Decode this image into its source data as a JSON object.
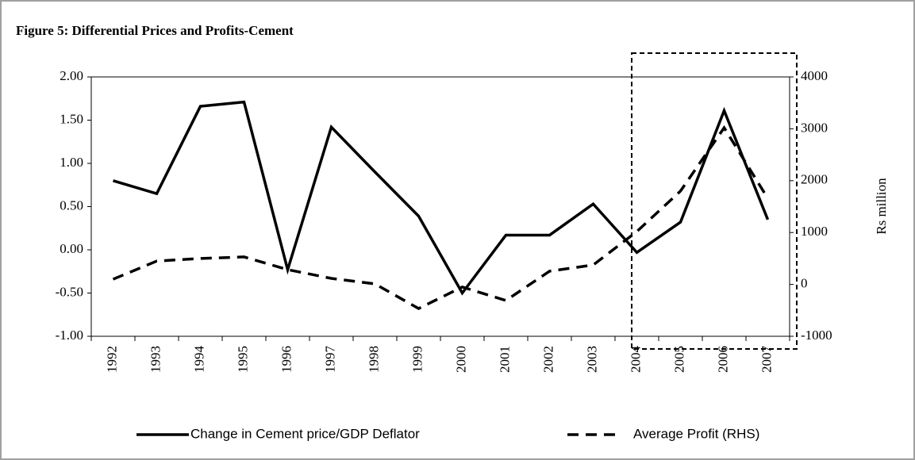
{
  "chart_data": {
    "type": "line",
    "title": "Figure 5: Differential Prices and Profits-Cement",
    "y2_label": "Rs million",
    "categories": [
      "1992",
      "1993",
      "1994",
      "1995",
      "1996",
      "1997",
      "1998",
      "1999",
      "2000",
      "2001",
      "2002",
      "2003",
      "2004",
      "2005",
      "2006",
      "2007"
    ],
    "series": [
      {
        "name": "Change in Cement price/GDP Deflator",
        "color": "#000000",
        "dash": "solid",
        "values": [
          0.8,
          0.65,
          1.66,
          1.71,
          -0.23,
          1.42,
          0.9,
          0.39,
          -0.5,
          0.17,
          0.17,
          0.53,
          -0.03,
          0.32,
          1.61,
          0.35
        ]
      },
      {
        "name": "Average Profit (RHS)",
        "color": "#000000",
        "dash": "dashed",
        "axis": "y2",
        "values": [
          100,
          450,
          500,
          530,
          285,
          116,
          10,
          -465,
          -50,
          -310,
          255,
          375,
          1020,
          1800,
          3020,
          1660
        ]
      }
    ],
    "ylim": [
      -1,
      2
    ],
    "yticks": [
      {
        "value": -1,
        "label": "-1.00"
      },
      {
        "value": -0.5,
        "label": "-0.50"
      },
      {
        "value": 0,
        "label": "0.00"
      },
      {
        "value": 0.5,
        "label": "0.50"
      },
      {
        "value": 1,
        "label": "1.00"
      },
      {
        "value": 1.5,
        "label": "1.50"
      },
      {
        "value": 2,
        "label": "2.00"
      }
    ],
    "y2lim": [
      -1000,
      4000
    ],
    "y2ticks": [
      -1000,
      0,
      1000,
      2000,
      3000,
      4000
    ],
    "grid": false,
    "legend": "bottom"
  }
}
